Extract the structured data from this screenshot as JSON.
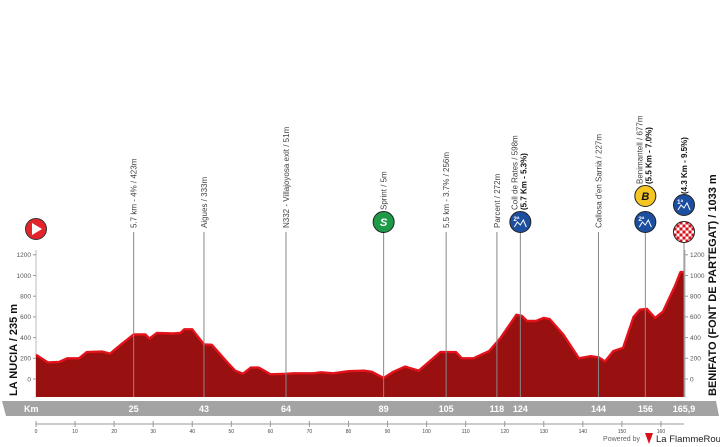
{
  "chart_data": {
    "type": "area",
    "title": "",
    "xlabel": "Km",
    "ylabel": "",
    "xlim": [
      0,
      165.9
    ],
    "ylim": [
      -180,
      1200
    ],
    "y_ticks": [
      0,
      200,
      400,
      600,
      800,
      1000,
      1200
    ],
    "x_ticks": [
      0,
      10,
      20,
      30,
      40,
      50,
      60,
      70,
      80,
      90,
      100,
      110,
      120,
      130,
      140,
      150,
      160
    ],
    "km_markers": [
      "25",
      "43",
      "64",
      "89",
      "105",
      "118",
      "124",
      "144",
      "156",
      "165,9"
    ],
    "km_marker_values": [
      25,
      43,
      64,
      89,
      105,
      118,
      124,
      144,
      156,
      165.9
    ],
    "start_label": "LA NUCIA / 235 m",
    "finish_label": "BENIFATO (FONT DE PARTEGAT) / 1033 m",
    "profile": {
      "km": [
        0,
        3,
        6,
        8,
        11,
        13,
        17,
        19,
        22,
        25,
        28,
        29,
        31,
        35,
        37,
        38,
        40,
        43,
        45,
        49,
        51,
        53,
        55,
        57,
        58,
        60,
        64,
        66,
        71,
        73,
        76,
        80,
        84,
        86,
        88,
        89,
        91.5,
        94.5,
        98,
        103.5,
        107.5,
        109,
        112,
        113.7,
        116,
        119,
        123,
        124.4,
        125.7,
        128,
        130,
        131.5,
        135,
        139,
        142,
        144,
        145.7,
        147.8,
        150.3,
        153,
        154.6,
        156.4,
        158.5,
        160.5,
        163.6,
        165,
        165.9
      ],
      "elevation_m": [
        235,
        160,
        165,
        200,
        200,
        260,
        265,
        245,
        340,
        430,
        430,
        390,
        445,
        440,
        445,
        480,
        480,
        333,
        330,
        160,
        80,
        50,
        110,
        110,
        90,
        45,
        50,
        55,
        55,
        65,
        55,
        75,
        80,
        70,
        30,
        10,
        70,
        120,
        80,
        260,
        260,
        200,
        200,
        230,
        270,
        400,
        620,
        610,
        560,
        560,
        590,
        580,
        430,
        200,
        220,
        210,
        170,
        270,
        300,
        600,
        670,
        677,
        590,
        650,
        900,
        1033,
        1033
      ]
    },
    "points": [
      {
        "km": 25,
        "label": "5.7 km - 4% / 423m"
      },
      {
        "km": 43,
        "label": "Aigues / 333m"
      },
      {
        "km": 64,
        "label": "N332 - Villajoyosa exit / 51m"
      },
      {
        "km": 89,
        "label": "Sprint / 5m",
        "icon": "sprint-icon",
        "icon_text": "S"
      },
      {
        "km": 105,
        "label": "5.5 km - 3.7% / 256m"
      },
      {
        "km": 118,
        "label": "Parcent / 272m"
      },
      {
        "km": 124,
        "label": "Coll de Rates / 598m",
        "detail": "(5.7 Km - 5.3%)",
        "icon": "climb-category-2-icon",
        "icon_text": "2ª"
      },
      {
        "km": 144,
        "label": "Callosa d'en Sarrià / 227m"
      },
      {
        "km": 156,
        "label": "Benimantell / 677m",
        "detail": "(5.5 Km - 7.0%)",
        "icon": "climb-category-2-icon",
        "icon_text": "2ª",
        "bonus_text": "B"
      },
      {
        "km": 165.9,
        "label": "",
        "detail": "(4.3 Km - 9.5%)",
        "icon": "climb-category-1-icon",
        "icon_text": "1ª"
      }
    ],
    "grid": false
  },
  "colors": {
    "profile_fill": "#981010",
    "profile_edge": "#e3121b",
    "km_bar": "#a3a3a3",
    "climb_icon": "#1d4fa0",
    "sprint_icon": "#1f9a48",
    "bonus_icon": "#f3c623",
    "start_icon": "#e3242b"
  },
  "footer": {
    "powered_by": "Powered by",
    "brand": "La FlammeRouge"
  }
}
